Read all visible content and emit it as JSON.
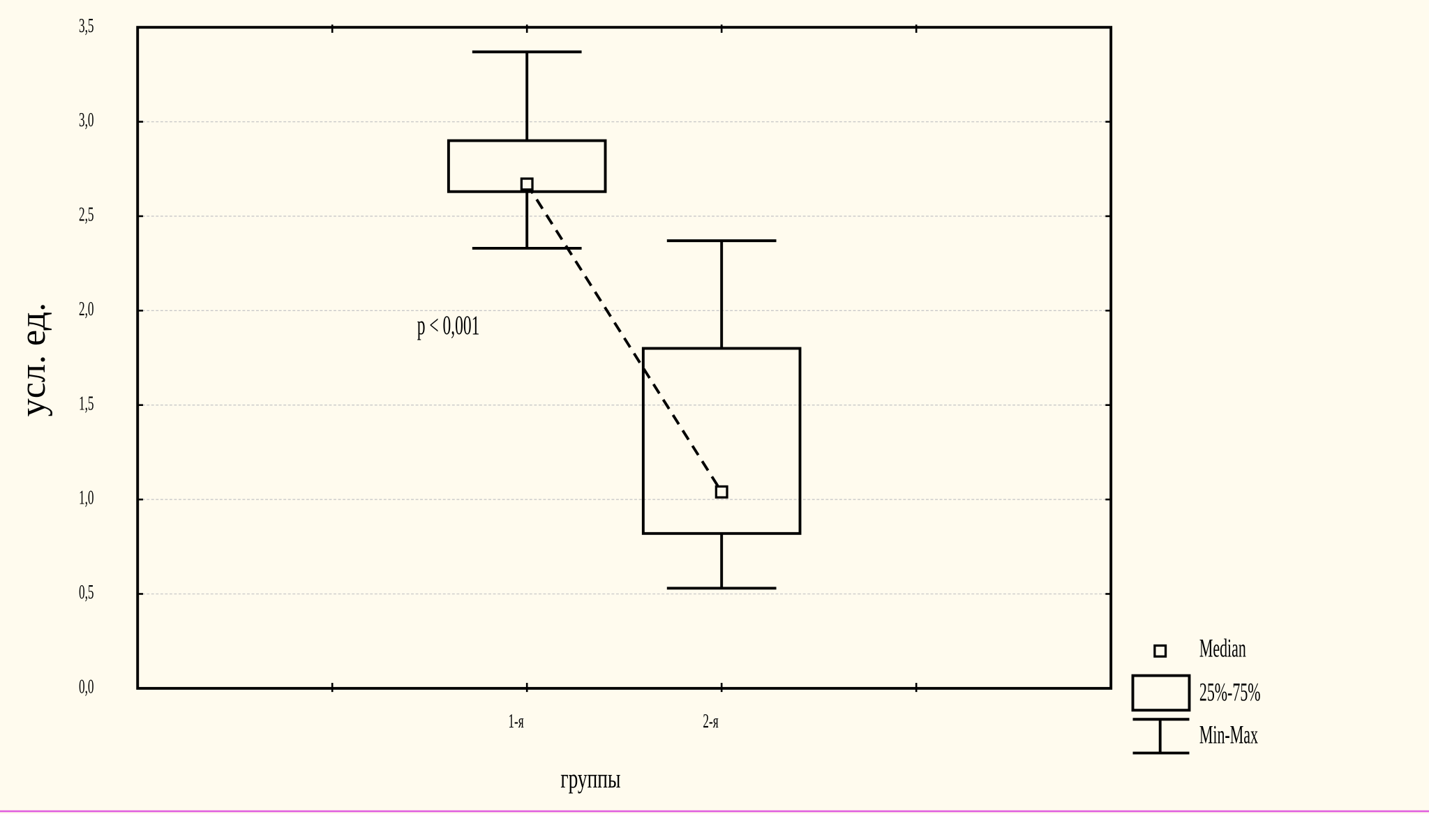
{
  "chart_data": {
    "type": "box",
    "x_label": "группы",
    "y_label": "усл. ед.",
    "annotation": "p < 0,001",
    "categories": [
      null,
      "1-я",
      "2-я",
      null
    ],
    "min": [
      null,
      2.33,
      0.53,
      null
    ],
    "q1": [
      null,
      2.63,
      0.82,
      null
    ],
    "median": [
      null,
      2.67,
      1.04,
      null
    ],
    "q3": [
      null,
      2.9,
      1.8,
      null
    ],
    "max": [
      null,
      3.37,
      2.37,
      null
    ],
    "ylim": [
      0,
      3.5
    ],
    "yticks": [
      {
        "value": 0,
        "label": "0,0"
      },
      {
        "value": 0.5,
        "label": "0,5"
      },
      {
        "value": 1,
        "label": "1,0"
      },
      {
        "value": 1.5,
        "label": "1,5"
      },
      {
        "value": 2,
        "label": "2,0"
      },
      {
        "value": 2.5,
        "label": "2,5"
      },
      {
        "value": 3,
        "label": "3,0"
      },
      {
        "value": 3.5,
        "label": "3,5"
      }
    ],
    "grid": true,
    "median_line": true,
    "legend": [
      "Median",
      "25%-75%",
      "Min-Max"
    ]
  }
}
